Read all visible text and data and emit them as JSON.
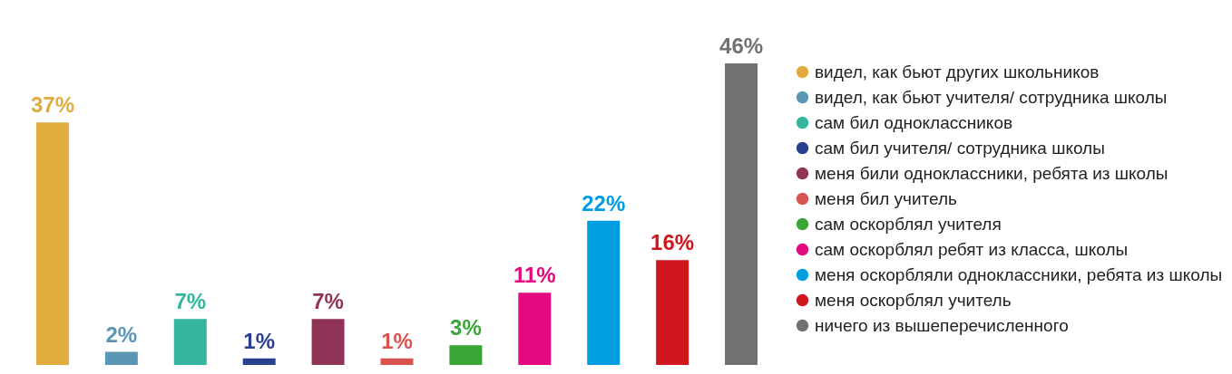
{
  "chart_data": {
    "type": "bar",
    "categories": [
      null,
      null,
      null,
      null,
      null,
      null,
      null,
      null,
      null,
      null,
      null
    ],
    "series": [
      {
        "name": "видел, как бьют других школьников",
        "color": "#e0ac3e",
        "values": [
          37,
          null,
          null,
          null,
          null,
          null,
          null,
          null,
          null,
          null,
          null
        ],
        "value_labels": [
          "37%",
          null,
          null,
          null,
          null,
          null,
          null,
          null,
          null,
          null,
          null
        ]
      },
      {
        "name": "видел, как бьют учителя/ сотрудника школы",
        "color": "#5b97b5",
        "values": [
          null,
          2,
          null,
          null,
          null,
          null,
          null,
          null,
          null,
          null,
          null
        ],
        "value_labels": [
          null,
          "2%",
          null,
          null,
          null,
          null,
          null,
          null,
          null,
          null,
          null
        ]
      },
      {
        "name": "сам бил одноклассников",
        "color": "#34b5a0",
        "values": [
          null,
          null,
          7,
          null,
          null,
          null,
          null,
          null,
          null,
          null,
          null
        ],
        "value_labels": [
          null,
          null,
          "7%",
          null,
          null,
          null,
          null,
          null,
          null,
          null,
          null
        ]
      },
      {
        "name": "сам бил учителя/ сотрудника школы",
        "color": "#2b3f8f",
        "values": [
          null,
          null,
          null,
          1,
          null,
          null,
          null,
          null,
          null,
          null,
          null
        ],
        "value_labels": [
          null,
          null,
          null,
          "1%",
          null,
          null,
          null,
          null,
          null,
          null,
          null
        ]
      },
      {
        "name": "меня били одноклассники, ребята из школы",
        "color": "#8f3457",
        "values": [
          null,
          null,
          null,
          null,
          7,
          null,
          null,
          null,
          null,
          null,
          null
        ],
        "value_labels": [
          null,
          null,
          null,
          null,
          "7%",
          null,
          null,
          null,
          null,
          null,
          null
        ]
      },
      {
        "name": "меня бил учитель",
        "color": "#d9534f",
        "values": [
          null,
          null,
          null,
          null,
          null,
          1,
          null,
          null,
          null,
          null,
          null
        ],
        "value_labels": [
          null,
          null,
          null,
          null,
          null,
          "1%",
          null,
          null,
          null,
          null,
          null
        ]
      },
      {
        "name": "сам оскорблял учителя",
        "color": "#3aa637",
        "values": [
          null,
          null,
          null,
          null,
          null,
          null,
          3,
          null,
          null,
          null,
          null
        ],
        "value_labels": [
          null,
          null,
          null,
          null,
          null,
          null,
          "3%",
          null,
          null,
          null,
          null
        ]
      },
      {
        "name": "сам оскорблял ребят из класса, школы",
        "color": "#e5097f",
        "values": [
          null,
          null,
          null,
          null,
          null,
          null,
          null,
          11,
          null,
          null,
          null
        ],
        "value_labels": [
          null,
          null,
          null,
          null,
          null,
          null,
          null,
          "11%",
          null,
          null,
          null
        ]
      },
      {
        "name": "меня оскорбляли одноклассники, ребята из школы",
        "color": "#009ee0",
        "values": [
          null,
          null,
          null,
          null,
          null,
          null,
          null,
          null,
          22,
          null,
          null
        ],
        "value_labels": [
          null,
          null,
          null,
          null,
          null,
          null,
          null,
          null,
          "22%",
          null,
          null
        ]
      },
      {
        "name": "меня оскорблял учитель",
        "color": "#d0161d",
        "values": [
          null,
          null,
          null,
          null,
          null,
          null,
          null,
          null,
          null,
          16,
          null
        ],
        "value_labels": [
          null,
          null,
          null,
          null,
          null,
          null,
          null,
          null,
          null,
          "16%",
          null
        ]
      },
      {
        "name": "ничего из вышеперечисленного",
        "color": "#717171",
        "values": [
          null,
          null,
          null,
          null,
          null,
          null,
          null,
          null,
          null,
          null,
          46
        ],
        "value_labels": [
          null,
          null,
          null,
          null,
          null,
          null,
          null,
          null,
          null,
          null,
          "46%"
        ]
      }
    ],
    "stacked": true,
    "legend": "right",
    "tick_labels": false,
    "grid": false
  }
}
